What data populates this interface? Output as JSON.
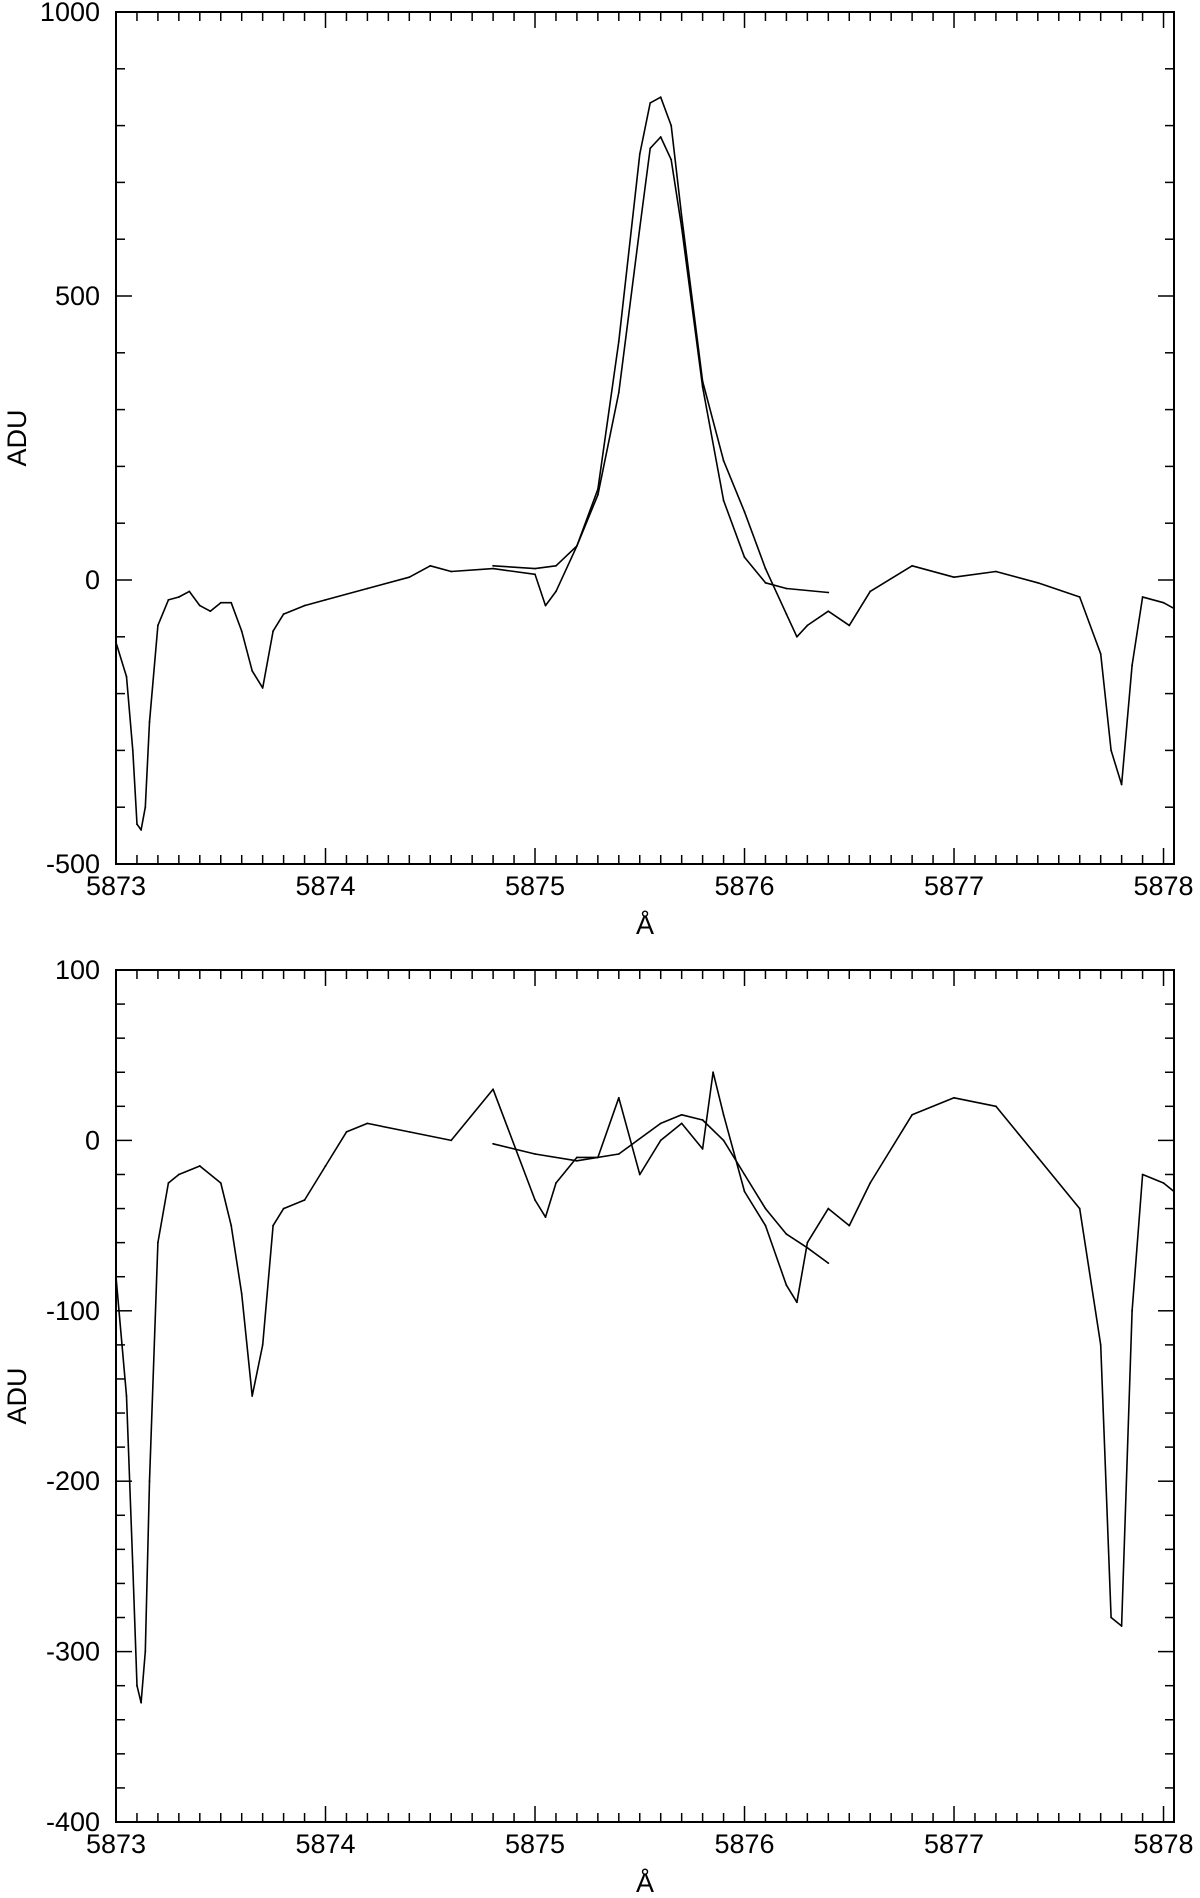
{
  "chart_data": [
    {
      "type": "line",
      "title": "",
      "xlabel": "Å",
      "ylabel": "ADU",
      "xlim": [
        5873,
        5878.05
      ],
      "ylim": [
        -500,
        1000
      ],
      "xticks": [
        5873,
        5874,
        5875,
        5876,
        5877,
        5878
      ],
      "yticks": [
        -500,
        0,
        500,
        1000
      ],
      "x_minor_step": 0.1,
      "y_minor_step": 100,
      "grid": false,
      "series": [
        {
          "role": "observed",
          "x": [
            5873.0,
            5873.05,
            5873.08,
            5873.1,
            5873.12,
            5873.14,
            5873.16,
            5873.2,
            5873.25,
            5873.3,
            5873.35,
            5873.4,
            5873.45,
            5873.5,
            5873.55,
            5873.6,
            5873.65,
            5873.7,
            5873.75,
            5873.8,
            5873.9,
            5874.0,
            5874.2,
            5874.4,
            5874.5,
            5874.6,
            5874.8,
            5875.0,
            5875.05,
            5875.1,
            5875.2,
            5875.3,
            5875.4,
            5875.5,
            5875.55,
            5875.6,
            5875.65,
            5875.7,
            5875.8,
            5875.9,
            5876.0,
            5876.1,
            5876.2,
            5876.25,
            5876.3,
            5876.4,
            5876.5,
            5876.6,
            5876.8,
            5877.0,
            5877.2,
            5877.4,
            5877.6,
            5877.7,
            5877.75,
            5877.8,
            5877.85,
            5877.9,
            5878.0,
            5878.05
          ],
          "y": [
            -110,
            -170,
            -300,
            -430,
            -440,
            -400,
            -250,
            -80,
            -35,
            -30,
            -20,
            -45,
            -55,
            -40,
            -40,
            -90,
            -160,
            -190,
            -90,
            -60,
            -45,
            -35,
            -15,
            5,
            25,
            15,
            20,
            10,
            -45,
            -20,
            60,
            160,
            420,
            750,
            840,
            850,
            800,
            640,
            350,
            210,
            120,
            20,
            -60,
            -100,
            -80,
            -55,
            -80,
            -20,
            25,
            5,
            15,
            -5,
            -30,
            -130,
            -300,
            -360,
            -150,
            -30,
            -40,
            -50
          ]
        },
        {
          "role": "fit",
          "x": [
            5874.8,
            5875.0,
            5875.1,
            5875.2,
            5875.3,
            5875.4,
            5875.5,
            5875.55,
            5875.6,
            5875.65,
            5875.7,
            5875.8,
            5875.9,
            5876.0,
            5876.1,
            5876.2,
            5876.4
          ],
          "y": [
            25,
            20,
            25,
            60,
            150,
            330,
            620,
            760,
            780,
            740,
            620,
            340,
            140,
            40,
            -5,
            -15,
            -22
          ]
        }
      ]
    },
    {
      "type": "line",
      "title": "",
      "xlabel": "Å",
      "ylabel": "ADU",
      "xlim": [
        5873,
        5878.05
      ],
      "ylim": [
        -400,
        100
      ],
      "xticks": [
        5873,
        5874,
        5875,
        5876,
        5877,
        5878
      ],
      "yticks": [
        -400,
        -300,
        -200,
        -100,
        0,
        100
      ],
      "x_minor_step": 0.1,
      "y_minor_step": 20,
      "grid": false,
      "series": [
        {
          "role": "observed",
          "x": [
            5873.0,
            5873.05,
            5873.08,
            5873.1,
            5873.12,
            5873.14,
            5873.16,
            5873.2,
            5873.25,
            5873.3,
            5873.4,
            5873.5,
            5873.55,
            5873.6,
            5873.65,
            5873.7,
            5873.75,
            5873.8,
            5873.9,
            5874.0,
            5874.1,
            5874.2,
            5874.4,
            5874.6,
            5874.8,
            5875.0,
            5875.05,
            5875.1,
            5875.2,
            5875.3,
            5875.4,
            5875.5,
            5875.6,
            5875.7,
            5875.8,
            5875.85,
            5875.9,
            5876.0,
            5876.1,
            5876.2,
            5876.25,
            5876.3,
            5876.4,
            5876.5,
            5876.6,
            5876.8,
            5877.0,
            5877.2,
            5877.4,
            5877.6,
            5877.7,
            5877.75,
            5877.8,
            5877.85,
            5877.9,
            5878.0,
            5878.05
          ],
          "y": [
            -80,
            -150,
            -250,
            -320,
            -330,
            -300,
            -200,
            -60,
            -25,
            -20,
            -15,
            -25,
            -50,
            -90,
            -150,
            -120,
            -50,
            -40,
            -35,
            -15,
            5,
            10,
            5,
            0,
            30,
            -35,
            -45,
            -25,
            -10,
            -10,
            25,
            -20,
            0,
            10,
            -5,
            40,
            15,
            -30,
            -50,
            -85,
            -95,
            -60,
            -40,
            -50,
            -25,
            15,
            25,
            20,
            -10,
            -40,
            -120,
            -280,
            -285,
            -100,
            -20,
            -25,
            -30
          ]
        },
        {
          "role": "fit",
          "x": [
            5874.8,
            5875.0,
            5875.2,
            5875.4,
            5875.6,
            5875.7,
            5875.8,
            5875.9,
            5876.0,
            5876.1,
            5876.2,
            5876.3,
            5876.4
          ],
          "y": [
            -2,
            -8,
            -12,
            -8,
            10,
            15,
            12,
            0,
            -20,
            -40,
            -55,
            -63,
            -72
          ]
        }
      ]
    }
  ]
}
